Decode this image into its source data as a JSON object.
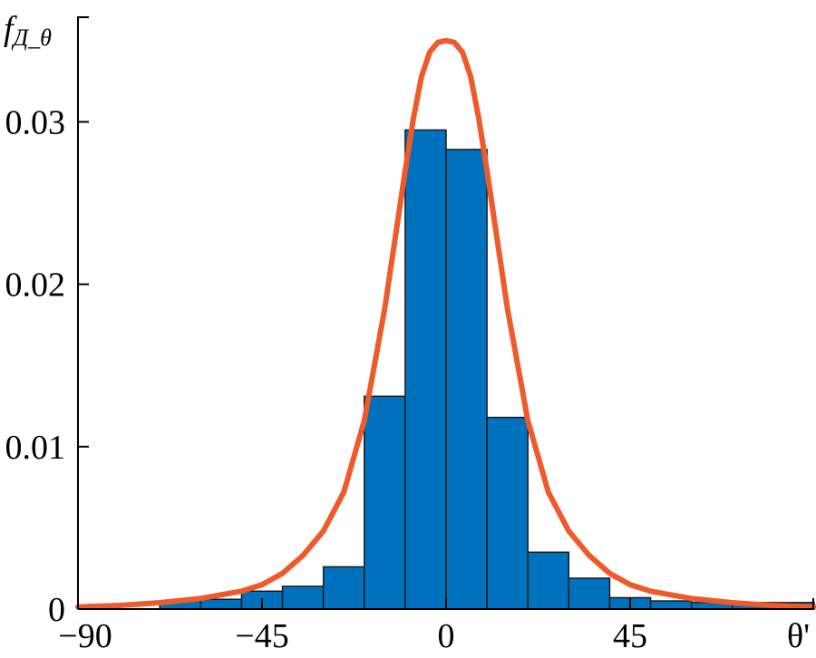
{
  "chart_data": {
    "type": "bar",
    "title": "",
    "ylabel_main": "f",
    "ylabel_sub": "Д_θ",
    "xlabel": "θ'",
    "xlim": [
      -90,
      90
    ],
    "ylim": [
      0,
      0.0365
    ],
    "x_ticks": [
      -90,
      -45,
      0,
      45
    ],
    "x_tick_labels": [
      "−90",
      "−45",
      "0",
      "45"
    ],
    "y_ticks": [
      0,
      0.01,
      0.02,
      0.03
    ],
    "y_tick_labels": [
      "0",
      "0.01",
      "0.02",
      "0.03"
    ],
    "grid": false,
    "bar_color": "#0072BD",
    "curve_color": "#EE5A2A",
    "bin_edges": [
      -70,
      -60,
      -50,
      -40,
      -30,
      -20,
      -10,
      0,
      10,
      20,
      30,
      40,
      50,
      60,
      70,
      80,
      90
    ],
    "values": [
      0.0005,
      0.0006,
      0.0011,
      0.0014,
      0.0026,
      0.0131,
      0.0295,
      0.0283,
      0.0118,
      0.0035,
      0.0019,
      0.0007,
      0.0005,
      0.0004,
      0.0004,
      0.0004
    ],
    "curve": {
      "type": "density",
      "peak_x": 0,
      "peak_y": 0.035,
      "x": [
        -90,
        -80,
        -70,
        -60,
        -50,
        -45,
        -40,
        -35,
        -30,
        -25,
        -20,
        -15,
        -12,
        -10,
        -8,
        -6,
        -4,
        -2,
        0,
        2,
        4,
        6,
        8,
        10,
        12,
        15,
        20,
        25,
        30,
        35,
        40,
        45,
        50,
        60,
        70,
        80,
        90
      ],
      "y": [
        0.00013,
        0.00022,
        0.00039,
        0.00065,
        0.0011,
        0.0015,
        0.0022,
        0.0033,
        0.0048,
        0.0072,
        0.0116,
        0.0185,
        0.0236,
        0.027,
        0.0302,
        0.0328,
        0.0343,
        0.0349,
        0.035,
        0.0349,
        0.0343,
        0.0328,
        0.0302,
        0.027,
        0.0236,
        0.0185,
        0.0116,
        0.0072,
        0.0048,
        0.0033,
        0.0022,
        0.0015,
        0.0011,
        0.00065,
        0.00039,
        0.00022,
        0.00013
      ]
    }
  }
}
